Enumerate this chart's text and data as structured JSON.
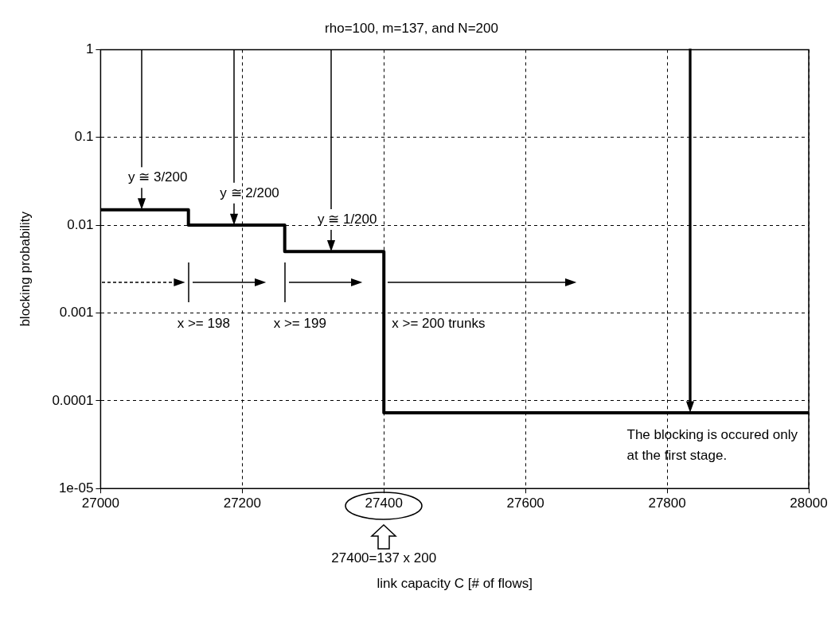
{
  "chart_data": {
    "type": "step",
    "title": "rho=100, m=137, and N=200",
    "xlabel": "link capacity C [# of flows]",
    "ylabel": "blocking probability",
    "x": [
      27000,
      27124,
      27260,
      27400,
      28000
    ],
    "series": [
      {
        "color": "#000000",
        "values": [
          0.015,
          0.01,
          0.005,
          7.3e-05,
          7.3e-05
        ]
      }
    ],
    "xlim": [
      27000,
      28000
    ],
    "xticks": [
      27000,
      27200,
      27400,
      27600,
      27800,
      28000
    ],
    "ylim": [
      1e-05,
      1
    ],
    "yticks": [
      1,
      0.1,
      0.01,
      0.001,
      0.0001,
      {
        "value": 1e-05,
        "label": "1e-05"
      }
    ],
    "log": "y",
    "grid": true,
    "legend": false,
    "marker": "none",
    "line_style": "solid",
    "annotations": [
      "y ≅ 3/200",
      "y ≅ 2/200",
      "y ≅ 1/200",
      "x >= 198",
      "x >= 199",
      "x >= 200 trunks",
      "The blocking is occured only at the first stage.",
      "27400=137 x 200"
    ]
  }
}
